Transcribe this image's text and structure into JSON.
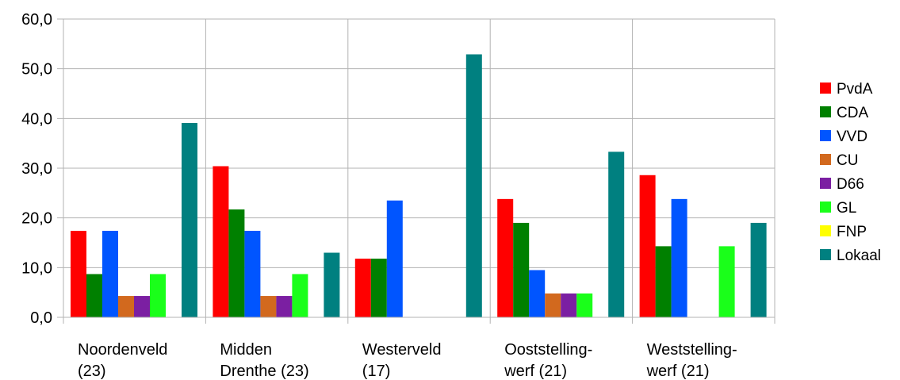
{
  "chart_data": {
    "type": "bar",
    "categories": [
      [
        "Noordenveld",
        "(23)"
      ],
      [
        "Midden",
        "Drenthe (23)"
      ],
      [
        "Westerveld",
        "(17)"
      ],
      [
        "Ooststelling-",
        "werf (21)"
      ],
      [
        "Weststelling-",
        "werf (21)"
      ]
    ],
    "ylim": [
      0,
      60
    ],
    "yticks": [
      "0,0",
      "10,0",
      "20,0",
      "30,0",
      "40,0",
      "50,0",
      "60,0"
    ],
    "grid": true,
    "legend_position": "right",
    "series": [
      {
        "name": "PvdA",
        "color": "#ff0000",
        "values": [
          17.4,
          30.4,
          11.8,
          23.8,
          28.6
        ]
      },
      {
        "name": "CDA",
        "color": "#008000",
        "values": [
          8.7,
          21.7,
          11.8,
          19.0,
          14.3
        ]
      },
      {
        "name": "VVD",
        "color": "#0055ff",
        "values": [
          17.4,
          17.4,
          23.5,
          9.5,
          23.8
        ]
      },
      {
        "name": "CU",
        "color": "#d2691e",
        "values": [
          4.3,
          4.3,
          0,
          4.8,
          0
        ]
      },
      {
        "name": "D66",
        "color": "#7b1fa2",
        "values": [
          4.3,
          4.3,
          0,
          4.8,
          0
        ]
      },
      {
        "name": "GL",
        "color": "#1aff1a",
        "values": [
          8.7,
          8.7,
          0,
          4.8,
          14.3
        ]
      },
      {
        "name": "FNP",
        "color": "#ffff00",
        "values": [
          0,
          0,
          0,
          0,
          0
        ]
      },
      {
        "name": "Lokaal",
        "color": "#008080",
        "values": [
          39.1,
          13.0,
          52.9,
          33.3,
          19.0
        ]
      }
    ]
  }
}
